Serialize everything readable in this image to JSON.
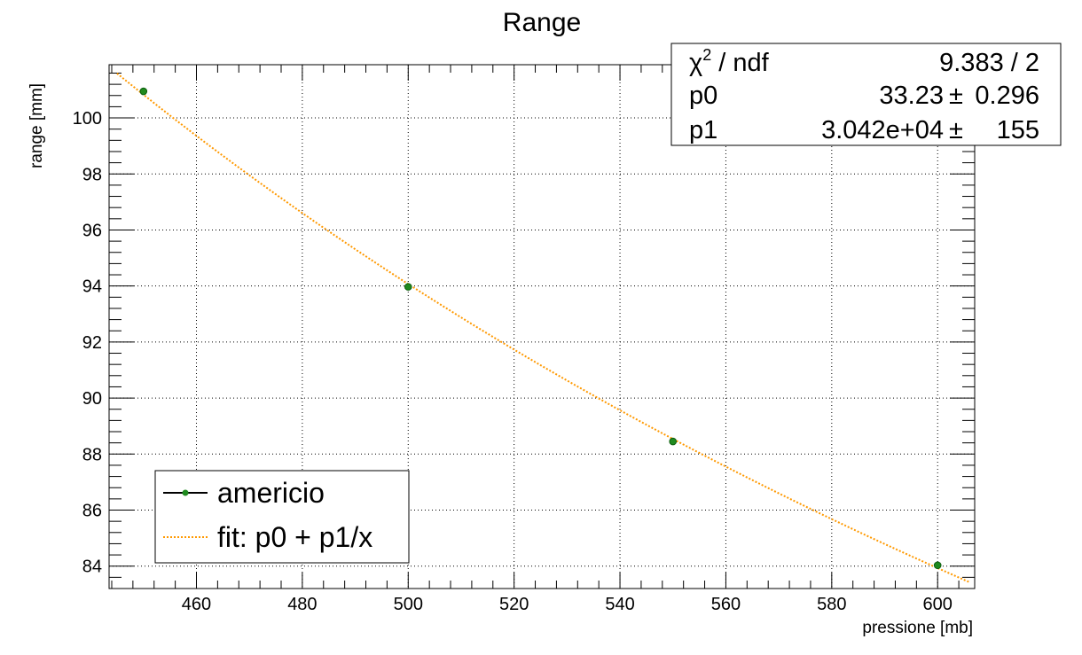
{
  "chart_data": {
    "type": "scatter",
    "title": "Range",
    "xlabel": "pressione [mb]",
    "ylabel": "range [mm]",
    "xlim": [
      443.5,
      607
    ],
    "ylim": [
      83.2,
      101.9
    ],
    "xticks": [
      460,
      480,
      500,
      520,
      540,
      560,
      580,
      600
    ],
    "xtick_labels": [
      "460",
      "480",
      "500",
      "520",
      "540",
      "560",
      "580",
      "600"
    ],
    "yticks": [
      84,
      86,
      88,
      90,
      92,
      94,
      96,
      98,
      100
    ],
    "ytick_labels": [
      "84",
      "86",
      "88",
      "90",
      "92",
      "94",
      "96",
      "98",
      "100"
    ],
    "grid": true,
    "series": [
      {
        "name": "americio",
        "color": "#1f8a1f",
        "x": [
          450,
          500,
          550,
          600
        ],
        "y": [
          100.95,
          93.97,
          88.45,
          84.03
        ]
      }
    ],
    "fit": {
      "name": "fit: p0 + p1/x",
      "color": "#ff9900",
      "formula": "p0 + p1/x",
      "p0": 33.23,
      "p1": 30420
    },
    "stats": {
      "rows": [
        {
          "label_main": "χ",
          "label_sup": "2",
          "label_rest": " / ndf",
          "value": "9.383 / 2"
        },
        {
          "label": "p0",
          "value": "33.23",
          "pm": "±",
          "error": "0.296"
        },
        {
          "label": "p1",
          "value": "3.042e+04",
          "pm": "±",
          "error": "155"
        }
      ]
    },
    "legend": {
      "position": "bottom-left",
      "entries": [
        "americio",
        "fit: p0 + p1/x"
      ]
    }
  }
}
